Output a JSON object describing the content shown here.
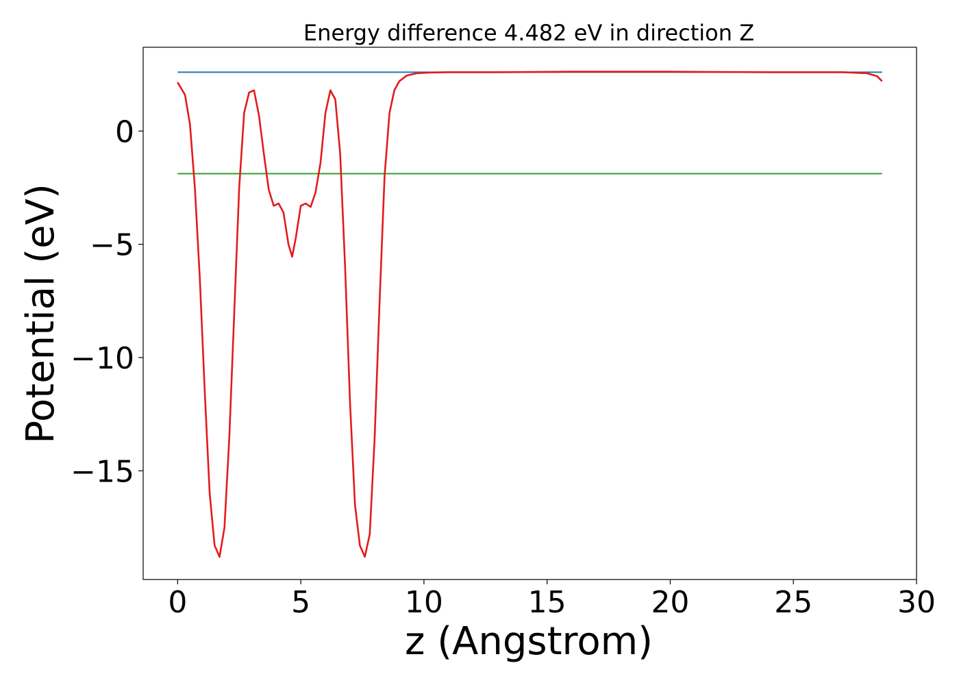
{
  "chart_data": {
    "type": "line",
    "title": "Energy difference 4.482 eV in direction Z",
    "xlabel": "z (Angstrom)",
    "ylabel": "Potential (eV)",
    "xlim": [
      -1.4,
      30.0
    ],
    "ylim": [
      -19.8,
      3.7
    ],
    "x_ticks": [
      0,
      5,
      10,
      15,
      20,
      25,
      30
    ],
    "x_tick_labels": [
      "0",
      "5",
      "10",
      "15",
      "20",
      "25",
      "30"
    ],
    "y_ticks": [
      0,
      -5,
      -10,
      -15
    ],
    "y_tick_labels": [
      "0",
      "−5",
      "−10",
      "−15"
    ],
    "grid": false,
    "legend": "none",
    "series": [
      {
        "color": "#1f77b4",
        "style": "horizontal",
        "x": [
          0,
          28.6
        ],
        "y": [
          2.6,
          2.6
        ]
      },
      {
        "color": "#2ca02c",
        "style": "horizontal",
        "x": [
          0,
          28.6
        ],
        "y": [
          -1.88,
          -1.88
        ]
      },
      {
        "color": "#e31a1c",
        "style": "curve",
        "x": [
          0,
          0.3,
          0.5,
          0.7,
          0.9,
          1.1,
          1.3,
          1.5,
          1.7,
          1.9,
          2.1,
          2.3,
          2.5,
          2.7,
          2.9,
          3.1,
          3.3,
          3.5,
          3.7,
          3.9,
          4.1,
          4.3,
          4.5,
          4.65,
          4.8,
          5.0,
          5.2,
          5.4,
          5.6,
          5.8,
          6.0,
          6.2,
          6.4,
          6.6,
          6.8,
          7.0,
          7.2,
          7.4,
          7.6,
          7.8,
          8.0,
          8.2,
          8.4,
          8.6,
          8.8,
          9.0,
          9.3,
          9.7,
          10.2,
          11.0,
          13.0,
          16.0,
          20.0,
          24.0,
          27.0,
          28.0,
          28.4,
          28.6
        ],
        "y": [
          2.15,
          1.6,
          0.3,
          -2.5,
          -6.5,
          -11.5,
          -16.0,
          -18.3,
          -18.8,
          -17.5,
          -13.5,
          -8.0,
          -2.5,
          0.8,
          1.7,
          1.8,
          0.7,
          -1.0,
          -2.6,
          -3.3,
          -3.2,
          -3.6,
          -5.0,
          -5.55,
          -4.7,
          -3.3,
          -3.2,
          -3.35,
          -2.7,
          -1.4,
          0.8,
          1.8,
          1.4,
          -1.0,
          -6.0,
          -12.0,
          -16.5,
          -18.3,
          -18.8,
          -17.8,
          -13.5,
          -7.5,
          -2.0,
          0.8,
          1.8,
          2.2,
          2.45,
          2.55,
          2.58,
          2.6,
          2.6,
          2.62,
          2.62,
          2.6,
          2.6,
          2.55,
          2.42,
          2.2
        ]
      }
    ]
  }
}
